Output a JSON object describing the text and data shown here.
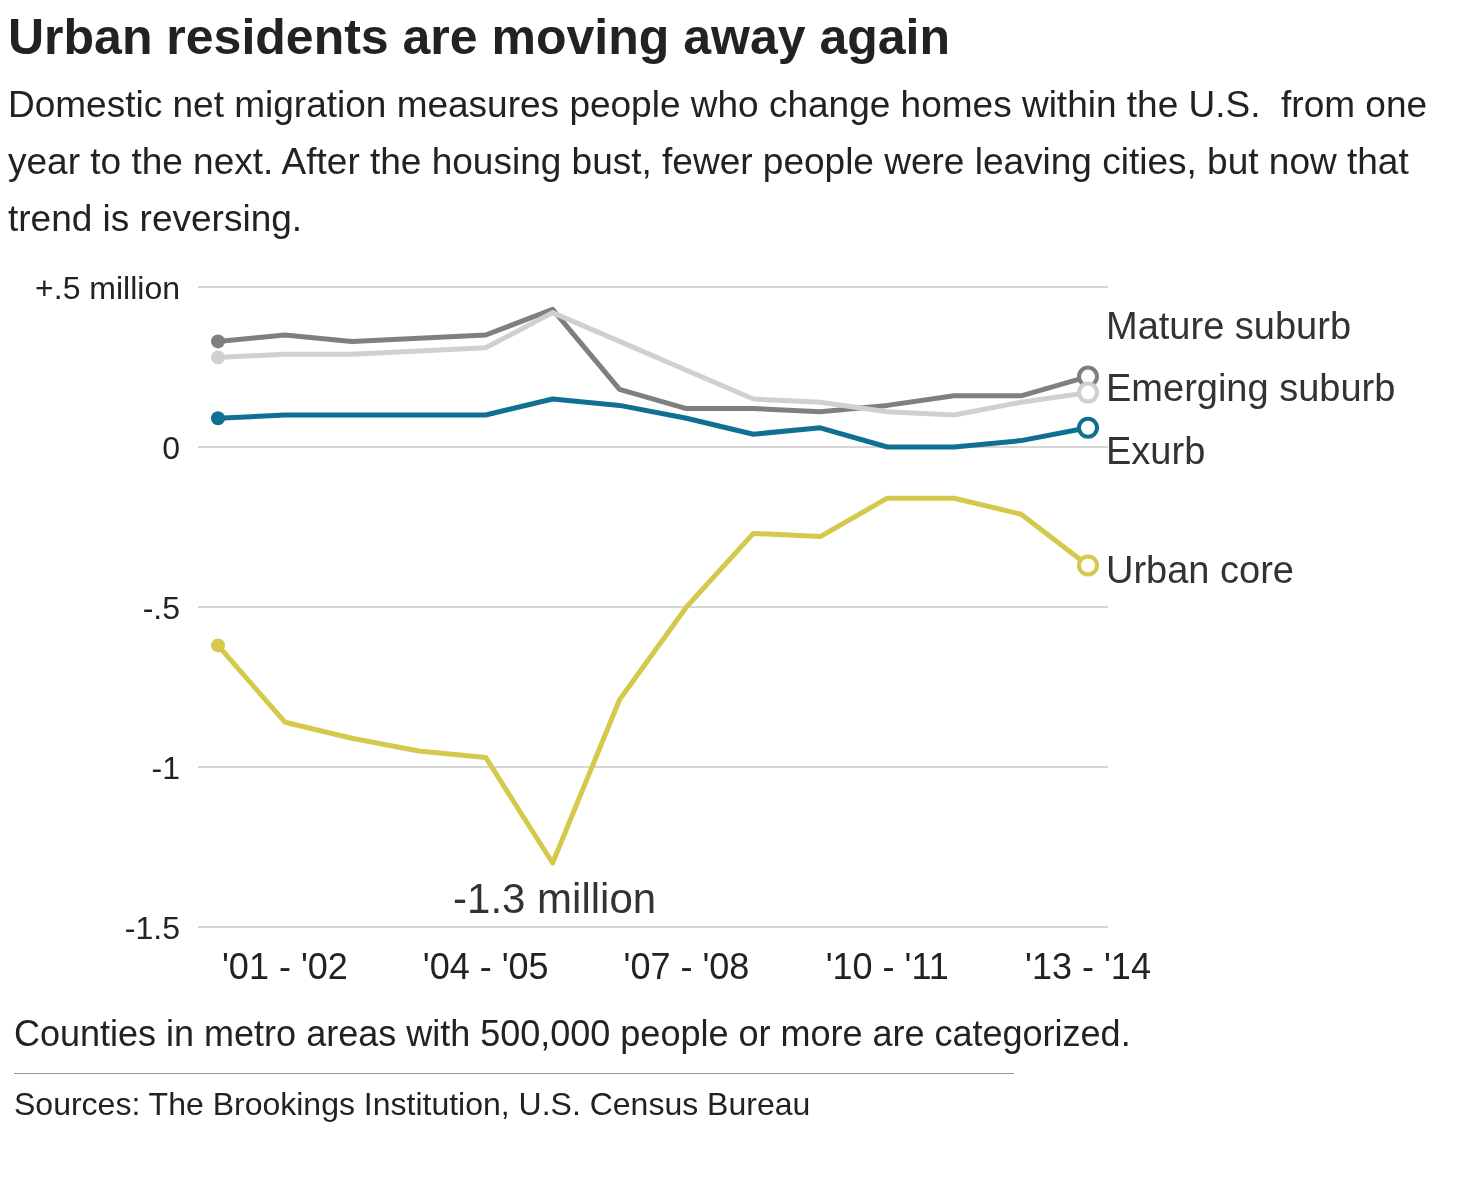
{
  "chart_data": {
    "type": "line",
    "title": "Urban residents are moving away again",
    "subtitle": "Domestic net migration measures people who change homes within the U.S.  from one year to the next. After the housing bust, fewer people were leaving cities, but now that trend is reversing.",
    "categories": [
      null,
      "'01 - '02",
      null,
      null,
      "'04 - '05",
      null,
      null,
      "'07 - '08",
      null,
      null,
      "'10 - '11",
      null,
      null,
      "'13 - '14"
    ],
    "series": [
      {
        "name": "Mature suburb",
        "color": "#7f7f7d",
        "values": [
          0.33,
          0.35,
          0.33,
          0.34,
          0.35,
          0.43,
          0.18,
          0.12,
          0.12,
          0.11,
          0.13,
          0.16,
          0.16,
          0.22
        ]
      },
      {
        "name": "Emerging suburb",
        "color": "#d0d0cc",
        "values": [
          0.28,
          0.29,
          0.29,
          0.3,
          0.31,
          0.42,
          0.33,
          0.24,
          0.15,
          0.14,
          0.11,
          0.1,
          0.14,
          0.17
        ]
      },
      {
        "name": "Exurb",
        "color": "#0f7093",
        "values": [
          0.09,
          0.1,
          0.1,
          0.1,
          0.1,
          0.15,
          0.13,
          0.09,
          0.04,
          0.06,
          0.0,
          0.0,
          0.02,
          0.06
        ]
      },
      {
        "name": "Urban core",
        "color": "#d4c94a",
        "values": [
          -0.62,
          -0.86,
          -0.91,
          -0.95,
          -0.97,
          -1.3,
          -0.79,
          -0.5,
          -0.27,
          -0.28,
          -0.16,
          -0.16,
          -0.21,
          -0.37
        ]
      }
    ],
    "ylim": [
      -1.5,
      0.5
    ],
    "yticks": [
      {
        "value": 0.5,
        "label": "+.5 million"
      },
      0,
      {
        "value": -0.5,
        "label": "-.5"
      },
      -1,
      {
        "value": -1.5,
        "label": "-1.5"
      }
    ],
    "grid": "y",
    "legend": false,
    "line_style": "solid",
    "annotations": [
      {
        "text": "-1.3 million",
        "y": -1.3
      },
      "Counties in metro areas with 500,000 people or more are categorized.",
      "Sources: The Brookings Institution, U.S. Census Bureau"
    ]
  }
}
